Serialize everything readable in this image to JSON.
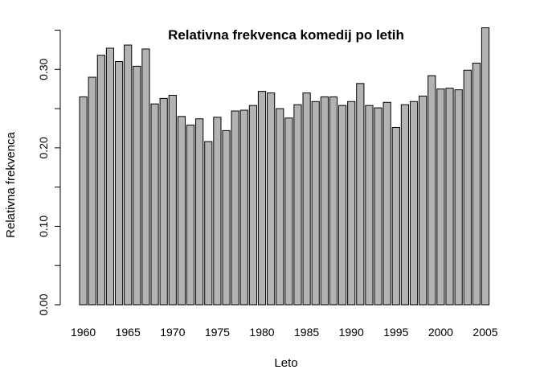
{
  "chart_data": {
    "type": "bar",
    "title": "Relativna frekvenca komedij po letih",
    "xlabel": "Leto",
    "ylabel": "Relativna frekvenca",
    "ylim": [
      0,
      0.35
    ],
    "y_ticks": [
      0.0,
      0.05,
      0.1,
      0.15,
      0.2,
      0.25,
      0.3,
      0.35
    ],
    "y_tick_labels": [
      "0.00",
      "",
      "0.10",
      "",
      "0.20",
      "",
      "0.30",
      ""
    ],
    "x_tick_labels": [
      "1960",
      "1965",
      "1970",
      "1975",
      "1980",
      "1985",
      "1990",
      "1995",
      "2000",
      "2005"
    ],
    "bar_fill": "#b3b3b3",
    "grid": false,
    "legend": "none",
    "categories": [
      1960,
      1961,
      1962,
      1963,
      1964,
      1965,
      1966,
      1967,
      1968,
      1969,
      1970,
      1971,
      1972,
      1973,
      1974,
      1975,
      1976,
      1977,
      1978,
      1979,
      1980,
      1981,
      1982,
      1983,
      1984,
      1985,
      1986,
      1987,
      1988,
      1989,
      1990,
      1991,
      1992,
      1993,
      1994,
      1995,
      1996,
      1997,
      1998,
      1999,
      2000,
      2001,
      2002,
      2003,
      2004,
      2005
    ],
    "values": [
      0.265,
      0.29,
      0.318,
      0.327,
      0.31,
      0.331,
      0.304,
      0.326,
      0.256,
      0.263,
      0.267,
      0.24,
      0.229,
      0.237,
      0.208,
      0.239,
      0.222,
      0.247,
      0.248,
      0.254,
      0.272,
      0.27,
      0.25,
      0.238,
      0.255,
      0.27,
      0.259,
      0.265,
      0.265,
      0.254,
      0.259,
      0.282,
      0.254,
      0.251,
      0.258,
      0.226,
      0.255,
      0.259,
      0.266,
      0.292,
      0.275,
      0.276,
      0.274,
      0.299,
      0.308,
      0.353
    ]
  }
}
